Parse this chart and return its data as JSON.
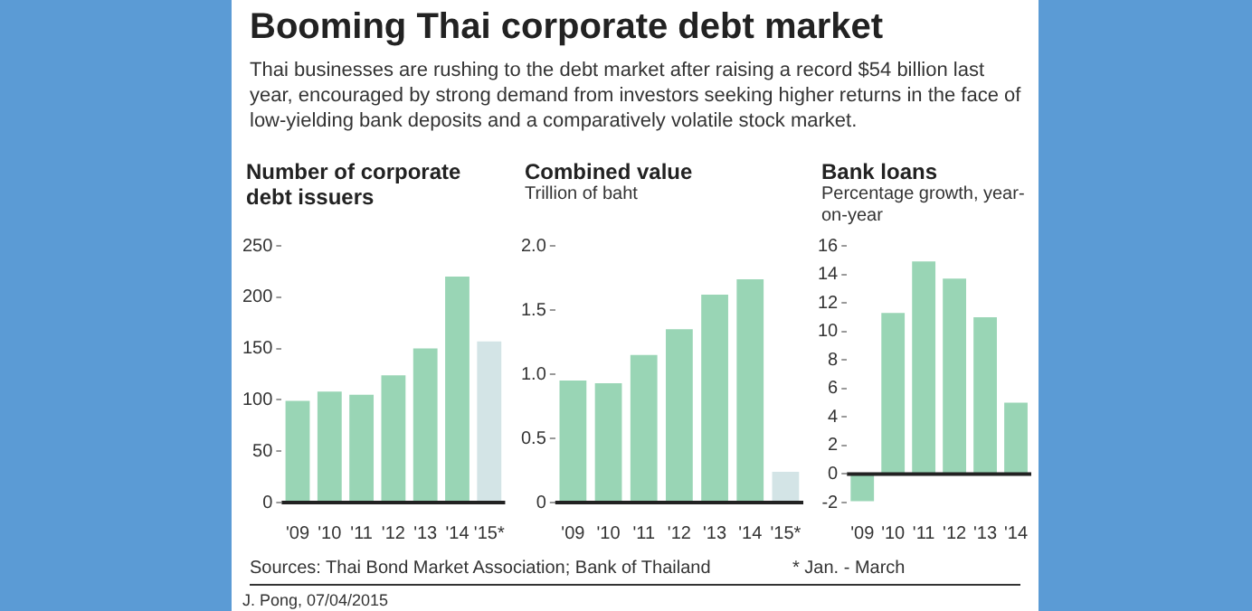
{
  "chart_data": [
    {
      "type": "other",
      "title": "Booming Thai corporate debt market",
      "subtitle": "Thai businesses are rushing to the debt market after raising a record $54 billion last year, encouraged by strong demand from investors seeking higher returns in the face of low-yielding bank deposits and a comparatively volatile stock market.",
      "annotations": [
        "Sources: Thai Bond Market Association; Bank of Thailand",
        "* Jan. - March",
        "J. Pong, 07/04/2015"
      ]
    },
    {
      "type": "bar",
      "title": "Number of corporate debt issuers",
      "categories": [
        "'09",
        "'10",
        "'11",
        "'12",
        "'13",
        "'14",
        "'15*"
      ],
      "values": [
        99,
        108,
        105,
        124,
        150,
        220,
        157
      ],
      "colors": [
        "#99d5b5",
        "#99d5b5",
        "#99d5b5",
        "#99d5b5",
        "#99d5b5",
        "#99d5b5",
        "#d3e4e6"
      ],
      "ylim": [
        0,
        250
      ],
      "yticks": [
        0,
        50,
        100,
        150,
        200,
        250
      ]
    },
    {
      "type": "bar",
      "title": "Combined value",
      "subtitle": "Trillion of baht",
      "categories": [
        "'09",
        "'10",
        "'11",
        "'12",
        "'13",
        "'14",
        "'15*"
      ],
      "values": [
        0.95,
        0.93,
        1.15,
        1.35,
        1.62,
        1.74,
        0.24
      ],
      "colors": [
        "#99d5b5",
        "#99d5b5",
        "#99d5b5",
        "#99d5b5",
        "#99d5b5",
        "#99d5b5",
        "#d3e4e6"
      ],
      "ylim": [
        0,
        2
      ],
      "yticks": [
        0,
        0.5,
        {
          "value": 1,
          "label": "1.0"
        },
        1.5,
        {
          "value": 2,
          "label": "2.0"
        }
      ]
    },
    {
      "type": "bar",
      "title": "Bank loans",
      "subtitle": "Percentage growth, year-on-year",
      "categories": [
        "'09",
        "'10",
        "'11",
        "'12",
        "'13",
        "'14"
      ],
      "values": [
        -1.9,
        11.3,
        14.9,
        13.7,
        11.0,
        5.0
      ],
      "colors": [
        "#99d5b5",
        "#99d5b5",
        "#99d5b5",
        "#99d5b5",
        "#99d5b5",
        "#99d5b5"
      ],
      "ylim": [
        -2,
        16
      ],
      "yticks": [
        -2,
        0,
        2,
        4,
        6,
        8,
        10,
        12,
        14,
        16
      ]
    }
  ]
}
